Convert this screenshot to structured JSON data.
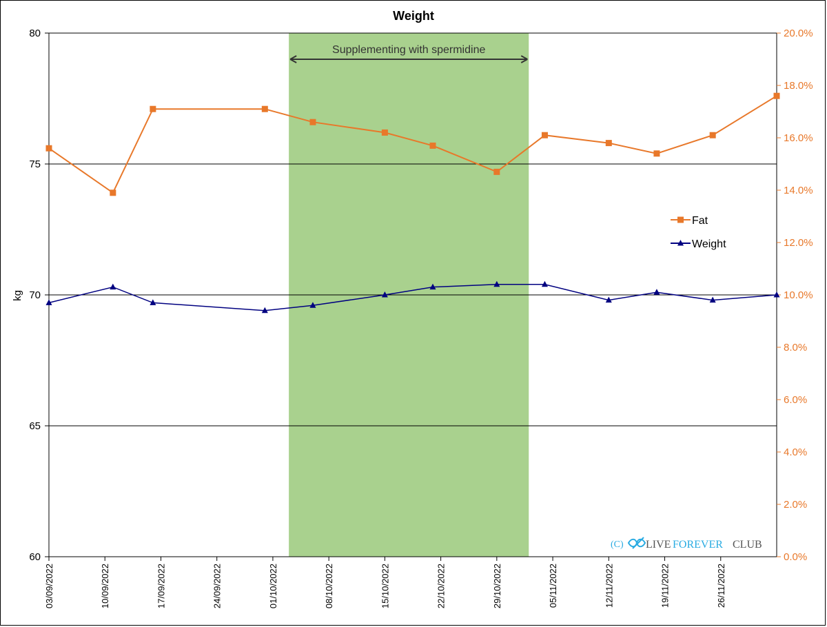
{
  "chart_data": {
    "type": "line",
    "title": "Weight",
    "ylabel": "kg",
    "ylim": [
      60,
      80
    ],
    "yticks": [
      60,
      65,
      70,
      75,
      80
    ],
    "y2lim": [
      0,
      20
    ],
    "y2ticks": [
      "0.0%",
      "2.0%",
      "4.0%",
      "6.0%",
      "8.0%",
      "10.0%",
      "12.0%",
      "14.0%",
      "16.0%",
      "18.0%",
      "20.0%"
    ],
    "xlim": [
      "2022-09-03",
      "2022-12-03"
    ],
    "x_tick_labels": [
      "03/09/2022",
      "10/09/2022",
      "17/09/2022",
      "24/09/2022",
      "01/10/2022",
      "08/10/2022",
      "15/10/2022",
      "22/10/2022",
      "29/10/2022",
      "05/11/2022",
      "12/11/2022",
      "19/11/2022",
      "26/11/2022"
    ],
    "x_tick_dates": [
      "2022-09-03",
      "2022-09-10",
      "2022-09-17",
      "2022-09-24",
      "2022-10-01",
      "2022-10-08",
      "2022-10-15",
      "2022-10-22",
      "2022-10-29",
      "2022-11-05",
      "2022-11-12",
      "2022-11-19",
      "2022-11-26"
    ],
    "gridlines": "horizontal",
    "legend_position": "right",
    "shaded_region": {
      "x_start": "2022-10-03",
      "x_end": "2022-11-02",
      "color": "#a9d18e",
      "label": "Supplementing with spermidine"
    },
    "series": [
      {
        "name": "Fat",
        "axis": "right",
        "unit": "%",
        "color": "#e8782a",
        "marker": "square",
        "points": [
          {
            "x": "2022-09-03",
            "y": 15.6
          },
          {
            "x": "2022-09-11",
            "y": 13.9
          },
          {
            "x": "2022-09-16",
            "y": 17.1
          },
          {
            "x": "2022-09-30",
            "y": 17.1
          },
          {
            "x": "2022-10-06",
            "y": 16.6
          },
          {
            "x": "2022-10-15",
            "y": 16.2
          },
          {
            "x": "2022-10-21",
            "y": 15.7
          },
          {
            "x": "2022-10-29",
            "y": 14.7
          },
          {
            "x": "2022-11-04",
            "y": 16.1
          },
          {
            "x": "2022-11-12",
            "y": 15.8
          },
          {
            "x": "2022-11-18",
            "y": 15.4
          },
          {
            "x": "2022-11-25",
            "y": 16.1
          },
          {
            "x": "2022-12-03",
            "y": 17.6
          }
        ]
      },
      {
        "name": "Weight",
        "axis": "left",
        "unit": "kg",
        "color": "#000080",
        "marker": "triangle",
        "points": [
          {
            "x": "2022-09-03",
            "y": 69.7
          },
          {
            "x": "2022-09-11",
            "y": 70.3
          },
          {
            "x": "2022-09-16",
            "y": 69.7
          },
          {
            "x": "2022-09-30",
            "y": 69.4
          },
          {
            "x": "2022-10-06",
            "y": 69.6
          },
          {
            "x": "2022-10-15",
            "y": 70.0
          },
          {
            "x": "2022-10-21",
            "y": 70.3
          },
          {
            "x": "2022-10-29",
            "y": 70.4
          },
          {
            "x": "2022-11-04",
            "y": 70.4
          },
          {
            "x": "2022-11-12",
            "y": 69.8
          },
          {
            "x": "2022-11-18",
            "y": 70.1
          },
          {
            "x": "2022-11-25",
            "y": 69.8
          },
          {
            "x": "2022-12-03",
            "y": 70.0
          }
        ]
      }
    ]
  },
  "watermark": {
    "prefix": "(C)",
    "live": "LIVE",
    "forever": "FOREVER",
    "club": "CLUB",
    "icon": "infinity-icon"
  }
}
